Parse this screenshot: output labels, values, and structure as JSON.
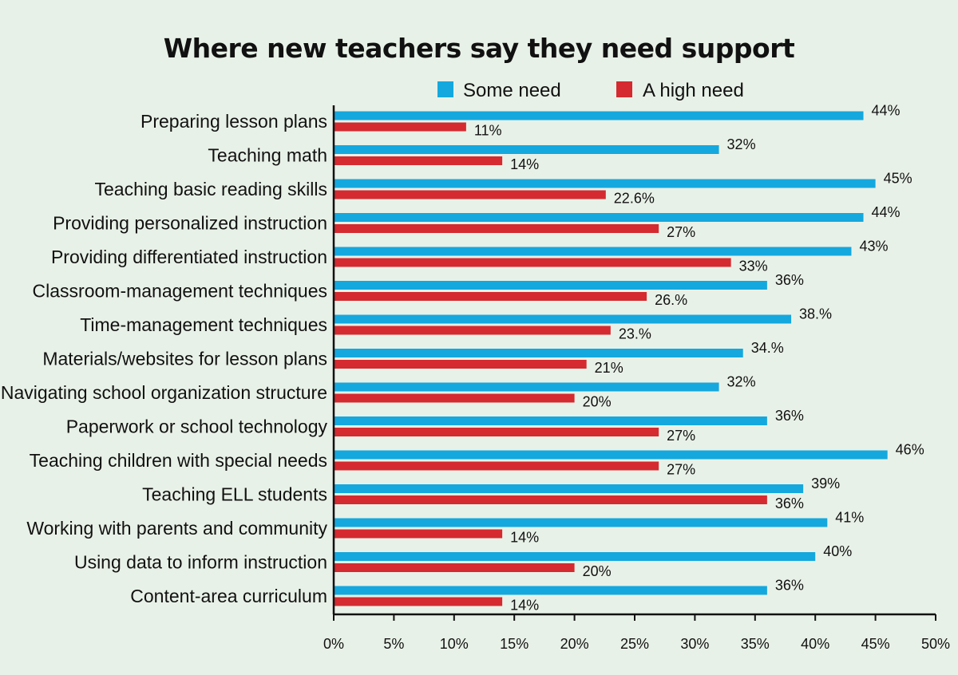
{
  "chart_data": {
    "type": "bar",
    "orientation": "horizontal",
    "title": "Where new teachers say they need support",
    "xlabel": "",
    "ylabel": "",
    "xlim": [
      0,
      50
    ],
    "x_ticks": [
      "0%",
      "5%",
      "10%",
      "15%",
      "20%",
      "25%",
      "30%",
      "35%",
      "40%",
      "45%",
      "50%"
    ],
    "grid": false,
    "legend_position": "top",
    "categories": [
      "Preparing lesson plans",
      "Teaching math",
      "Teaching basic reading skills",
      "Providing personalized instruction",
      "Providing differentiated instruction",
      "Classroom-management techniques",
      "Time-management techniques",
      "Materials/websites for lesson plans",
      "Navigating school organization structure",
      "Paperwork or school technology",
      "Teaching children with special needs",
      "Teaching ELL students",
      "Working with parents and community",
      "Using data to inform instruction",
      "Content-area curriculum"
    ],
    "series": [
      {
        "name": "Some need",
        "color": "#14a8de",
        "values": [
          44,
          32,
          45,
          44,
          43,
          36,
          38,
          34,
          32,
          36,
          46,
          39,
          41,
          40,
          36
        ],
        "labels": [
          "44%",
          "32%",
          "45%",
          "44%",
          "43%",
          "36%",
          "38.%",
          "34.%",
          "32%",
          "36%",
          "46%",
          "39%",
          "41%",
          "40%",
          "36%"
        ]
      },
      {
        "name": "A high need",
        "color": "#d42a30",
        "values": [
          11,
          14,
          22.6,
          27,
          33,
          26,
          23,
          21,
          20,
          27,
          27,
          36,
          14,
          20,
          14
        ],
        "labels": [
          "11%",
          "14%",
          "22.6%",
          "27%",
          "33%",
          "26.%",
          "23.%",
          "21%",
          "20%",
          "27%",
          "27%",
          "36%",
          "14%",
          "20%",
          "14%"
        ]
      }
    ]
  }
}
